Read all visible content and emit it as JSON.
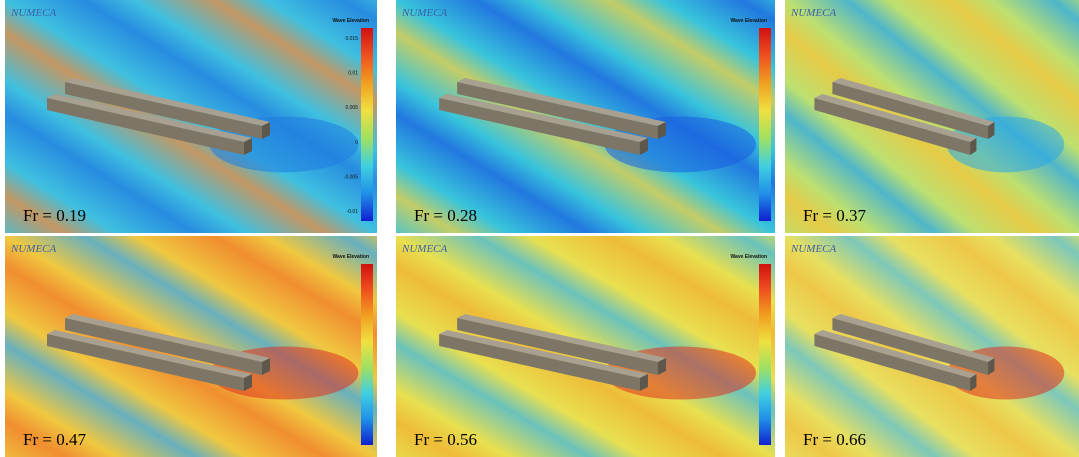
{
  "panels": [
    {
      "watermark": "NUMECA",
      "legend_title": "Wave Elevation",
      "colorbar_ticks": [
        "0.015",
        "0.01",
        "0.005",
        "0",
        "-0.005",
        "-0.01"
      ],
      "label": "Fr = 0.19"
    },
    {
      "watermark": "NUMECA",
      "legend_title": "Wave Elevation",
      "label": "Fr = 0.28"
    },
    {
      "watermark": "NUMECA",
      "label": "Fr = 0.37"
    },
    {
      "watermark": "NUMECA",
      "legend_title": "Wave Elevation",
      "label": "Fr = 0.47"
    },
    {
      "watermark": "NUMECA",
      "legend_title": "Wave Elevation",
      "label": "Fr = 0.56"
    },
    {
      "watermark": "NUMECA",
      "label": "Fr = 0.66"
    }
  ]
}
